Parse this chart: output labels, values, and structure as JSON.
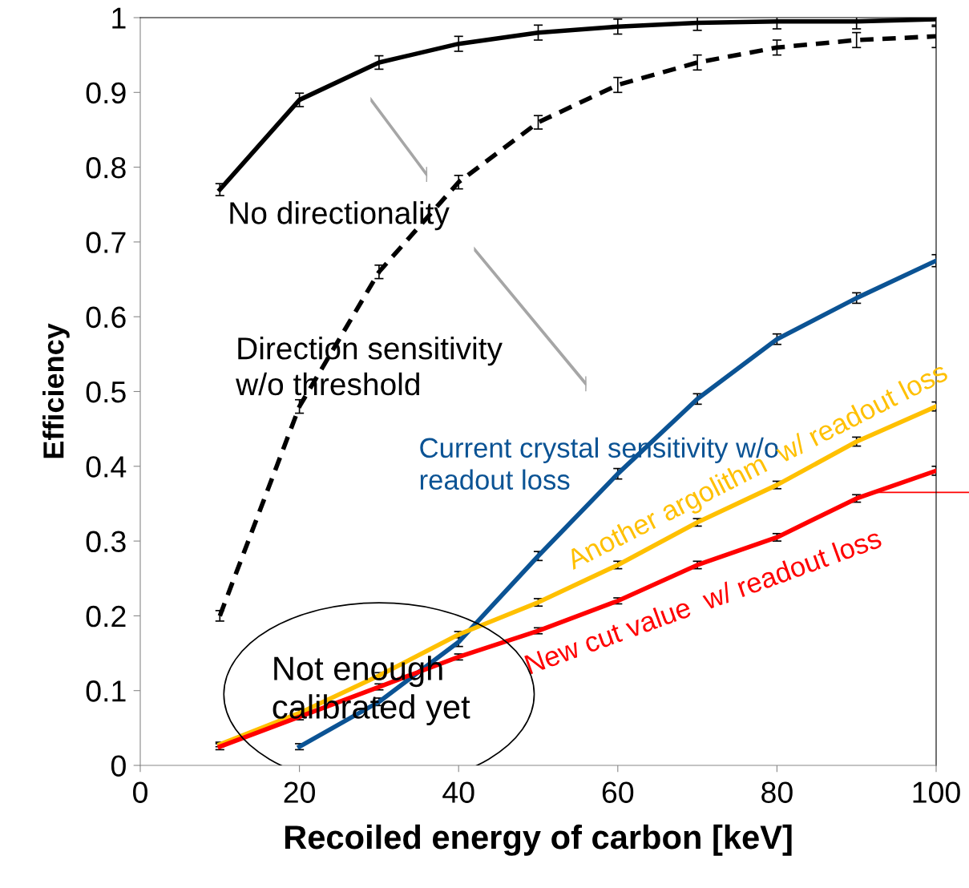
{
  "chart_data": {
    "type": "line",
    "xlabel": "Recoiled energy of carbon [keV]",
    "ylabel": "Efficiency",
    "x": [
      10,
      20,
      30,
      40,
      50,
      60,
      70,
      80,
      90,
      100
    ],
    "series": [
      {
        "name": "No directionality",
        "color": "#000000",
        "line_style": "solid",
        "values": [
          0.77,
          0.89,
          0.94,
          0.965,
          0.98,
          0.988,
          0.993,
          0.995,
          0.995,
          0.998
        ],
        "errors": [
          0.008,
          0.009,
          0.009,
          0.01,
          0.01,
          0.01,
          0.01,
          0.01,
          0.01,
          0.01
        ]
      },
      {
        "name": "Direction sensitivity w/o threshold",
        "color": "#000000",
        "line_style": "dashed",
        "values": [
          0.2,
          0.48,
          0.66,
          0.78,
          0.86,
          0.91,
          0.94,
          0.96,
          0.97,
          0.975
        ],
        "errors": [
          0.007,
          0.009,
          0.009,
          0.009,
          0.009,
          0.01,
          0.01,
          0.01,
          0.01,
          0.015
        ]
      },
      {
        "name": "Current crystal sensitivity w/o readout loss",
        "color": "#0b5394",
        "line_style": "solid",
        "values": [
          null,
          0.025,
          0.085,
          0.165,
          0.28,
          0.39,
          0.49,
          0.57,
          0.625,
          0.675
        ],
        "errors": [
          null,
          0.004,
          0.005,
          0.006,
          0.006,
          0.007,
          0.007,
          0.007,
          0.007,
          0.008
        ]
      },
      {
        "name": "Another argolithm  w/ readout loss",
        "color": "#ffc000",
        "line_style": "solid",
        "values": [
          0.028,
          0.07,
          0.12,
          0.175,
          0.218,
          0.268,
          0.325,
          0.375,
          0.433,
          0.48
        ],
        "errors": [
          0.003,
          0.004,
          0.004,
          0.004,
          0.005,
          0.005,
          0.005,
          0.005,
          0.006,
          0.006
        ]
      },
      {
        "name": "New cut value  w/ readout loss",
        "color": "#ff0000",
        "line_style": "solid",
        "values": [
          0.025,
          0.065,
          0.105,
          0.145,
          0.18,
          0.22,
          0.268,
          0.305,
          0.357,
          0.394
        ],
        "errors": [
          0.004,
          0.004,
          0.004,
          0.004,
          0.004,
          0.004,
          0.005,
          0.005,
          0.005,
          0.006
        ]
      }
    ],
    "annotations": [
      "Not enough\ncalibrated yet"
    ],
    "xlim": [
      0,
      100
    ],
    "ylim": [
      0,
      1
    ],
    "xticks": [
      0,
      20,
      40,
      60,
      80,
      100
    ],
    "yticks": [
      0,
      0.1,
      0.2,
      0.3,
      0.4,
      0.5,
      0.6,
      0.7,
      0.8,
      0.9,
      1
    ],
    "grid": false,
    "legend": false,
    "marker": "none"
  }
}
